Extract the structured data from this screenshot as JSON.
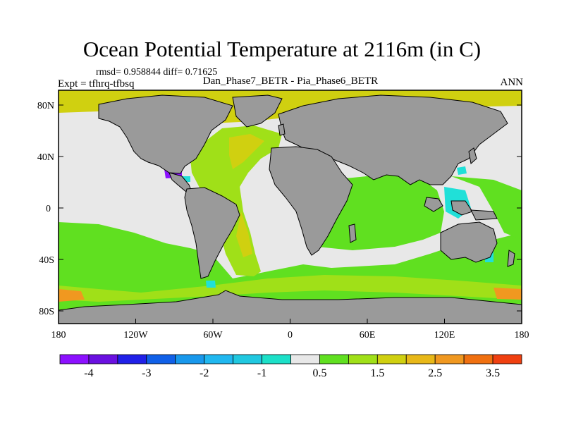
{
  "title": "Ocean Potential Temperature at 2116m (in C)",
  "stats": "rmsd= 0.958844 diff= 0.71625",
  "experiment": "Expt = tfhrq-tfbsq",
  "comparison": "Dan_Phase7_BETR - Pia_Phase6_BETR",
  "season": "ANN",
  "lat_ticks": [
    "80N",
    "40N",
    "0",
    "40S",
    "80S"
  ],
  "lon_ticks": [
    "180",
    "120W",
    "60W",
    "0",
    "60E",
    "120E",
    "180"
  ],
  "colorbar": {
    "colors": [
      "#8c10ff",
      "#6a10e0",
      "#2020e8",
      "#1060e8",
      "#1898ec",
      "#20b8f0",
      "#20c8e0",
      "#1ce0c8",
      "#e8e8e8",
      "#60e020",
      "#a0e018",
      "#d0d010",
      "#e8b818",
      "#f09820",
      "#f07010",
      "#f04010"
    ],
    "labels": [
      "-4",
      "-3",
      "-2",
      "-1",
      "0.5",
      "1.5",
      "2.5",
      "3.5"
    ]
  },
  "colors": {
    "land": "#9a9a9a",
    "zero_change": "#e8e8e8",
    "green": "#60e020",
    "lime": "#a0e018",
    "yellow": "#d0d010",
    "orange": "#e8b818",
    "cyan": "#20e0d8",
    "purple": "#8c10ff"
  }
}
